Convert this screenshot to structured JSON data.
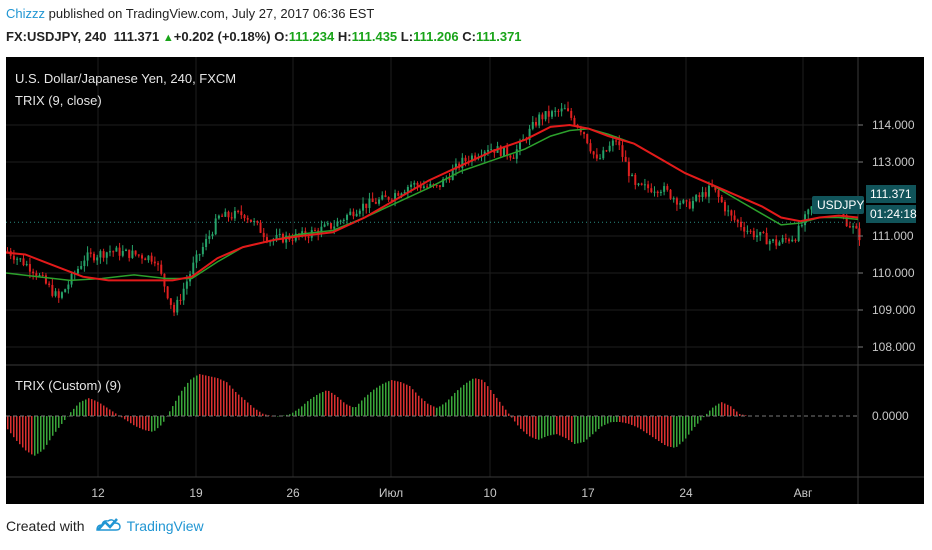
{
  "header": {
    "user": "Chizzz",
    "published": "published on TradingView.com, July 27, 2017 06:36 EST",
    "symbol_tf": "FX:USDJPY, 240",
    "last": "111.371",
    "change": "+0.202 (+0.18%)",
    "o_label": "O:",
    "o_val": "111.234",
    "h_label": "H:",
    "h_val": "111.435",
    "l_label": "L:",
    "l_val": "111.206",
    "c_label": "C:",
    "c_val": "111.371"
  },
  "legend": {
    "instrument": "U.S. Dollar/Japanese Yen, 240, FXCM",
    "indicator": "TRIX (9, close)",
    "sub_indicator": "TRIX (Custom) (9)"
  },
  "price_tag": {
    "symbol": "USDJPY",
    "price": "111.371",
    "countdown": "01:24:18"
  },
  "footer": {
    "created": "Created with",
    "brand": "TradingView"
  },
  "colors": {
    "up": "#26a269",
    "down": "#e02020",
    "ma_red": "#e31a1a",
    "ma_green": "#2ca02c",
    "tag": "#11545a",
    "bg": "#000000"
  },
  "chart_data": {
    "type": "candlestick",
    "price_axis": {
      "ticks": [
        "114.000",
        "113.000",
        "112.000",
        "111.000",
        "110.000",
        "109.000",
        "108.000"
      ],
      "ylim": [
        107.6,
        114.9
      ]
    },
    "trix_axis": {
      "ticks": [
        "0.0000"
      ]
    },
    "x_ticks": [
      "12",
      "19",
      "26",
      "Июл",
      "10",
      "17",
      "24",
      "Авг"
    ],
    "close_path": [
      [
        0,
        110.6
      ],
      [
        8,
        110.1
      ],
      [
        16,
        109.3
      ],
      [
        24,
        110.4
      ],
      [
        32,
        110.6
      ],
      [
        40,
        110.5
      ],
      [
        46,
        110.4
      ],
      [
        52,
        108.95
      ],
      [
        58,
        110.2
      ],
      [
        66,
        111.5
      ],
      [
        74,
        111.6
      ],
      [
        82,
        110.9
      ],
      [
        92,
        111.0
      ],
      [
        102,
        111.3
      ],
      [
        110,
        111.8
      ],
      [
        118,
        112.0
      ],
      [
        126,
        112.4
      ],
      [
        134,
        112.3
      ],
      [
        142,
        113.0
      ],
      [
        150,
        113.4
      ],
      [
        158,
        113.2
      ],
      [
        166,
        114.2
      ],
      [
        174,
        114.4
      ],
      [
        180,
        113.8
      ],
      [
        184,
        113.0
      ],
      [
        190,
        113.6
      ],
      [
        196,
        112.3
      ],
      [
        204,
        112.3
      ],
      [
        212,
        111.8
      ],
      [
        220,
        112.3
      ],
      [
        226,
        111.5
      ],
      [
        232,
        111.1
      ],
      [
        240,
        110.8
      ],
      [
        246,
        111.0
      ],
      [
        252,
        111.9
      ],
      [
        258,
        111.9
      ],
      [
        262,
        111.4
      ],
      [
        266,
        111.0
      ]
    ],
    "red_ma": [
      [
        0,
        110.55
      ],
      [
        6,
        110.5
      ],
      [
        12,
        110.3
      ],
      [
        18,
        110.1
      ],
      [
        24,
        109.9
      ],
      [
        32,
        109.8
      ],
      [
        40,
        109.8
      ],
      [
        48,
        109.8
      ],
      [
        52,
        109.8
      ],
      [
        58,
        109.9
      ],
      [
        66,
        110.4
      ],
      [
        74,
        110.7
      ],
      [
        84,
        110.9
      ],
      [
        92,
        111.0
      ],
      [
        102,
        111.1
      ],
      [
        112,
        111.5
      ],
      [
        122,
        112.0
      ],
      [
        132,
        112.5
      ],
      [
        142,
        112.9
      ],
      [
        152,
        113.3
      ],
      [
        162,
        113.6
      ],
      [
        170,
        113.95
      ],
      [
        176,
        114.0
      ],
      [
        182,
        113.9
      ],
      [
        188,
        113.7
      ],
      [
        196,
        113.5
      ],
      [
        204,
        113.1
      ],
      [
        212,
        112.7
      ],
      [
        220,
        112.4
      ],
      [
        228,
        112.1
      ],
      [
        236,
        111.8
      ],
      [
        242,
        111.5
      ],
      [
        248,
        111.4
      ],
      [
        254,
        111.5
      ],
      [
        260,
        111.55
      ],
      [
        266,
        111.5
      ]
    ],
    "green_ma": [
      [
        0,
        110.0
      ],
      [
        10,
        109.9
      ],
      [
        20,
        109.8
      ],
      [
        30,
        109.85
      ],
      [
        40,
        109.95
      ],
      [
        50,
        109.85
      ],
      [
        58,
        109.85
      ],
      [
        66,
        110.3
      ],
      [
        74,
        110.7
      ],
      [
        84,
        110.9
      ],
      [
        92,
        111.05
      ],
      [
        102,
        111.15
      ],
      [
        112,
        111.5
      ],
      [
        122,
        111.9
      ],
      [
        132,
        112.3
      ],
      [
        142,
        112.75
      ],
      [
        152,
        113.05
      ],
      [
        162,
        113.35
      ],
      [
        170,
        113.7
      ],
      [
        176,
        113.85
      ],
      [
        182,
        113.9
      ],
      [
        188,
        113.75
      ],
      [
        196,
        113.5
      ],
      [
        204,
        113.1
      ],
      [
        212,
        112.7
      ],
      [
        220,
        112.4
      ],
      [
        228,
        112.0
      ],
      [
        236,
        111.6
      ],
      [
        242,
        111.3
      ],
      [
        248,
        111.35
      ],
      [
        254,
        111.5
      ],
      [
        260,
        111.5
      ],
      [
        266,
        111.45
      ]
    ],
    "trix_bars": [
      -0.3,
      -0.6,
      -0.85,
      -1.0,
      -0.85,
      -0.5,
      -0.2,
      0.1,
      0.35,
      0.45,
      0.35,
      0.2,
      0.05,
      -0.1,
      -0.25,
      -0.35,
      -0.4,
      -0.2,
      0.2,
      0.6,
      0.9,
      1.05,
      1.0,
      0.95,
      0.85,
      0.6,
      0.4,
      0.2,
      0.05,
      0.0,
      0.0,
      0.05,
      0.2,
      0.4,
      0.55,
      0.65,
      0.5,
      0.3,
      0.2,
      0.45,
      0.65,
      0.8,
      0.9,
      0.85,
      0.75,
      0.5,
      0.3,
      0.2,
      0.35,
      0.6,
      0.8,
      0.95,
      0.9,
      0.6,
      0.3,
      0.0,
      -0.3,
      -0.5,
      -0.6,
      -0.5,
      -0.45,
      -0.55,
      -0.7,
      -0.65,
      -0.45,
      -0.25,
      -0.15,
      -0.15,
      -0.2,
      -0.3,
      -0.45,
      -0.6,
      -0.75,
      -0.8,
      -0.6,
      -0.3,
      -0.05,
      0.2,
      0.35,
      0.25,
      0.05,
      0.0
    ]
  }
}
